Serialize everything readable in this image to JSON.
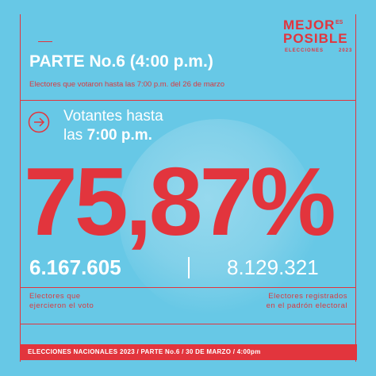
{
  "brand": {
    "line1": "MEJOR",
    "superscript": "ES",
    "line2": "POSIBLE",
    "elecciones": "ELECCIONES",
    "year": "2023"
  },
  "header": {
    "title": "PARTE No.6 (4:00 p.m.)",
    "subtitle": "Electores que votaron hasta las 7:00 p.m. del 26 de marzo"
  },
  "votantes": {
    "line1": "Votantes hasta",
    "line2_prefix": "las ",
    "line2_time": "7:00 p.m."
  },
  "percentage": "75,87%",
  "counts": {
    "voted": "6.167.605",
    "registered": "8.129.321",
    "voted_label_1": "Electores que",
    "voted_label_2": "ejercieron el voto",
    "registered_label_1": "Electores registrados",
    "registered_label_2": "en el padrón electoral"
  },
  "footer": "ELECCIONES NACIONALES 2023 / PARTE No.6 / 30 DE MARZO / 4:00pm",
  "icons": {
    "arrow": "arrow-right-circle-icon"
  },
  "colors": {
    "background": "#67c8e6",
    "accent": "#e2353d",
    "text_light": "#ffffff"
  }
}
